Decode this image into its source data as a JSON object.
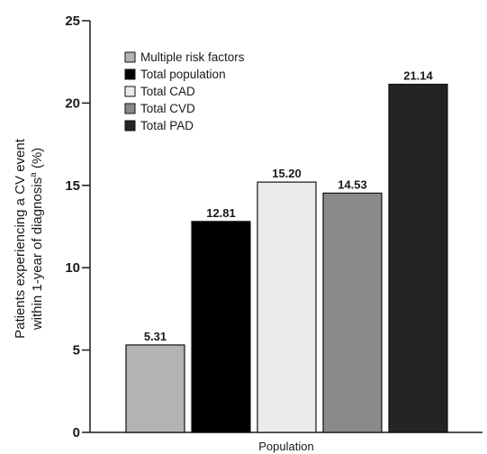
{
  "chart_data": {
    "type": "bar",
    "xlabel": "Population",
    "ylabel_lines": [
      "Patients experiencing a CV event",
      "within 1-year of diagnosis"
    ],
    "ylabel_superscript": "a",
    "ylabel_unit": " (%)",
    "ylim": [
      0,
      25
    ],
    "yticks": [
      "0",
      "5",
      "10",
      "15",
      "20",
      "25"
    ],
    "grid": false,
    "legend_position": "top-left",
    "categories": [
      "Multiple risk factors",
      "Total population",
      "Total CAD",
      "Total CVD",
      "Total PAD"
    ],
    "values": [
      5.31,
      12.81,
      15.2,
      14.53,
      21.14
    ],
    "value_labels": [
      "5.31",
      "12.81",
      "15.20",
      "14.53",
      "21.14"
    ],
    "colors": [
      "#b3b3b3",
      "#000000",
      "#ebebeb",
      "#8a8a8a",
      "#242424"
    ]
  }
}
